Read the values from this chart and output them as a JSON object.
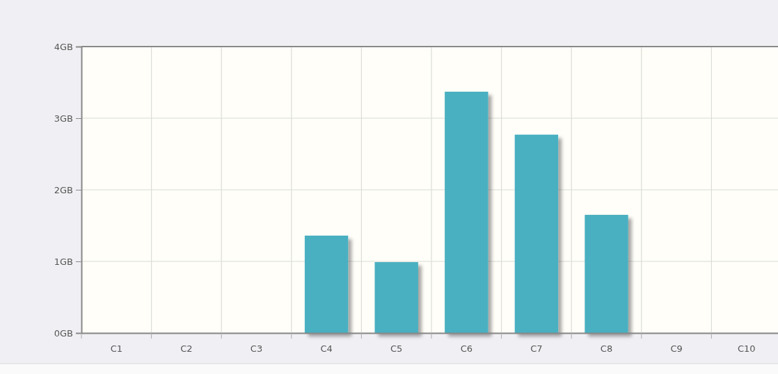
{
  "chart_data": {
    "type": "bar",
    "categories": [
      "C1",
      "C2",
      "C3",
      "C4",
      "C5",
      "C6",
      "C7",
      "C8",
      "C9",
      "C10"
    ],
    "values": [
      0,
      0,
      0,
      1.36,
      0.99,
      3.37,
      2.77,
      1.65,
      0,
      0
    ],
    "color": "#4ab0c1",
    "ylim": [
      0,
      4
    ],
    "yticks": [
      {
        "value": 0,
        "label": "0GB"
      },
      {
        "value": 1,
        "label": "1GB"
      },
      {
        "value": 2,
        "label": "2GB"
      },
      {
        "value": 3,
        "label": "3GB"
      },
      {
        "value": 4,
        "label": "4GB"
      }
    ],
    "grid": true
  }
}
